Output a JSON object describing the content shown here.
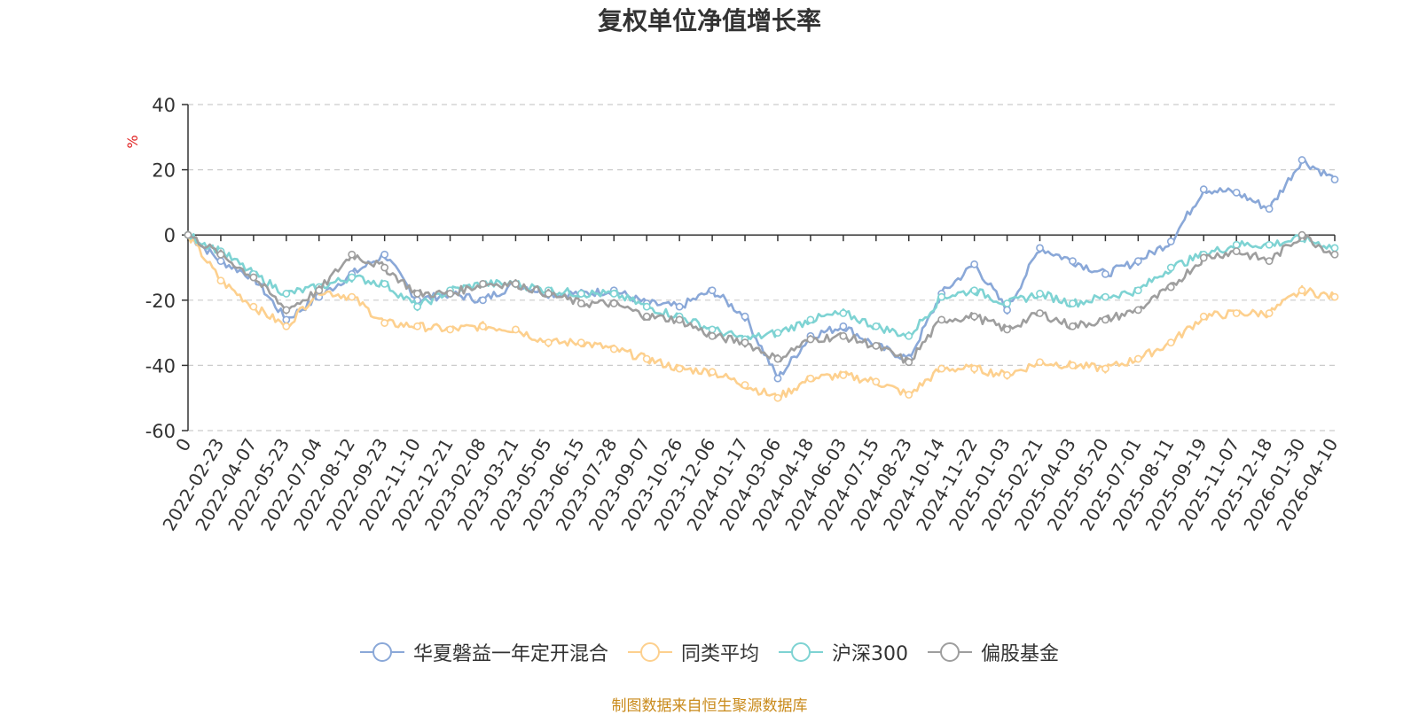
{
  "chart_data": {
    "type": "line",
    "title": "复权单位净值增长率",
    "ylabel": "%",
    "xlabel": "",
    "ylim": [
      -60,
      40
    ],
    "yticks": [
      40,
      20,
      0,
      -20,
      -40,
      -60
    ],
    "grid": true,
    "legend_position": "bottom-center",
    "categories": [
      "0",
      "2022-02-23",
      "2022-04-07",
      "2022-05-23",
      "2022-07-04",
      "2022-08-12",
      "2022-09-23",
      "2022-11-10",
      "2022-12-21",
      "2023-02-08",
      "2023-03-21",
      "2023-05-05",
      "2023-06-15",
      "2023-07-28",
      "2023-09-07",
      "2023-10-26",
      "2023-12-06",
      "2024-01-17",
      "2024-03-06",
      "2024-04-18",
      "2024-06-03",
      "2024-07-15",
      "2024-08-23",
      "2024-10-14",
      "2024-11-22",
      "2025-01-03",
      "2025-02-21",
      "2025-04-03",
      "2025-05-20",
      "2025-07-01",
      "2025-08-11",
      "2025-09-19",
      "2025-11-07",
      "2025-12-18",
      "2026-01-30",
      "2026-04-10"
    ],
    "series": [
      {
        "name": "华夏磐益一年定开混合",
        "color": "#8aa8d8",
        "values": [
          0,
          -8,
          -13,
          -26,
          -19,
          -12,
          -6,
          -20,
          -18,
          -20,
          -15,
          -18,
          -18,
          -17,
          -21,
          -22,
          -17,
          -25,
          -44,
          -31,
          -28,
          -34,
          -38,
          -18,
          -9,
          -23,
          -4,
          -8,
          -12,
          -8,
          -2,
          14,
          13,
          8,
          23,
          17
        ]
      },
      {
        "name": "同类平均",
        "color": "#fdd08e",
        "values": [
          0,
          -14,
          -22,
          -28,
          -17,
          -19,
          -27,
          -28,
          -29,
          -28,
          -29,
          -33,
          -33,
          -35,
          -38,
          -41,
          -42,
          -46,
          -50,
          -44,
          -43,
          -45,
          -49,
          -41,
          -41,
          -43,
          -39,
          -40,
          -41,
          -38,
          -33,
          -25,
          -24,
          -24,
          -17,
          -19
        ]
      },
      {
        "name": "沪深300",
        "color": "#7ed3d3",
        "values": [
          0,
          -5,
          -12,
          -18,
          -16,
          -13,
          -15,
          -22,
          -17,
          -15,
          -15,
          -17,
          -18,
          -18,
          -22,
          -25,
          -29,
          -32,
          -30,
          -26,
          -24,
          -28,
          -31,
          -19,
          -17,
          -21,
          -18,
          -21,
          -19,
          -17,
          -10,
          -6,
          -3,
          -3,
          -1,
          -4
        ]
      },
      {
        "name": "偏股基金",
        "color": "#9e9e9e",
        "values": [
          0,
          -6,
          -13,
          -23,
          -17,
          -6,
          -10,
          -18,
          -18,
          -15,
          -15,
          -18,
          -21,
          -21,
          -25,
          -26,
          -31,
          -33,
          -38,
          -32,
          -31,
          -34,
          -39,
          -26,
          -25,
          -29,
          -24,
          -28,
          -26,
          -23,
          -16,
          -7,
          -5,
          -8,
          0,
          -6
        ]
      }
    ]
  },
  "source_note": "制图数据来自恒生聚源数据库"
}
